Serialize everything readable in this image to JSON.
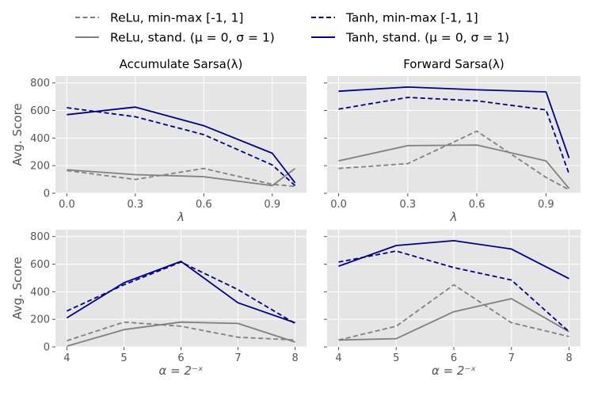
{
  "legend": [
    {
      "label": "ReLu, min-max [-1, 1]",
      "color": "#808080",
      "dash": true
    },
    {
      "label": "Tanh, min-max [-1, 1]",
      "color": "#00008b",
      "dash": true
    },
    {
      "label": "ReLu, stand. (μ = 0, σ = 1)",
      "color": "#808080",
      "dash": false
    },
    {
      "label": "Tanh, stand. (μ = 0, σ = 1)",
      "color": "#00008b",
      "dash": false
    }
  ],
  "colors": {
    "relu": "#808080",
    "tanh": "#00008b",
    "panel_bg": "#e5e5e5",
    "grid": "#ffffff"
  },
  "chart_data": [
    {
      "type": "line",
      "title": "Accumulate Sarsa(λ)",
      "xlabel": "λ",
      "ylabel": "Avg. Score",
      "x_ticks": [
        "0.0",
        "0.3",
        "0.6",
        "0.9"
      ],
      "y_ticks": [
        "0",
        "200",
        "400",
        "600",
        "800"
      ],
      "xlim": [
        -0.05,
        1.05
      ],
      "ylim": [
        0,
        850
      ],
      "x": [
        0.0,
        0.3,
        0.6,
        0.9,
        1.0
      ],
      "series": [
        {
          "name": "ReLu, min-max [-1, 1]",
          "values": [
            165,
            100,
            180,
            65,
            50
          ]
        },
        {
          "name": "ReLu, stand. (μ = 0, σ = 1)",
          "values": [
            170,
            135,
            120,
            55,
            180
          ]
        },
        {
          "name": "Tanh, min-max [-1, 1]",
          "values": [
            620,
            555,
            425,
            205,
            55
          ]
        },
        {
          "name": "Tanh, stand. (μ = 0, σ = 1)",
          "values": [
            570,
            625,
            490,
            290,
            75
          ]
        }
      ]
    },
    {
      "type": "line",
      "title": "Forward Sarsa(λ)",
      "xlabel": "λ",
      "ylabel": "",
      "x_ticks": [
        "0.0",
        "0.3",
        "0.6",
        "0.9"
      ],
      "y_ticks": [
        "0",
        "200",
        "400",
        "600",
        "800"
      ],
      "xlim": [
        -0.05,
        1.05
      ],
      "ylim": [
        0,
        850
      ],
      "x": [
        0.0,
        0.3,
        0.6,
        0.9,
        1.0
      ],
      "series": [
        {
          "name": "ReLu, min-max [-1, 1]",
          "values": [
            180,
            215,
            450,
            115,
            25
          ]
        },
        {
          "name": "ReLu, stand. (μ = 0, σ = 1)",
          "values": [
            235,
            345,
            350,
            235,
            35
          ]
        },
        {
          "name": "Tanh, min-max [-1, 1]",
          "values": [
            610,
            695,
            670,
            605,
            140
          ]
        },
        {
          "name": "Tanh, stand. (μ = 0, σ = 1)",
          "values": [
            740,
            770,
            750,
            735,
            255
          ]
        }
      ]
    },
    {
      "type": "line",
      "title": "",
      "xlabel": "α = 2⁻ˣ",
      "ylabel": "Avg. Score",
      "x_ticks": [
        "4",
        "5",
        "6",
        "7",
        "8"
      ],
      "y_ticks": [
        "0",
        "200",
        "400",
        "600",
        "800"
      ],
      "xlim": [
        3.8,
        8.2
      ],
      "ylim": [
        0,
        850
      ],
      "x": [
        4,
        5,
        6,
        7,
        8
      ],
      "series": [
        {
          "name": "ReLu, min-max [-1, 1]",
          "values": [
            45,
            180,
            150,
            70,
            50
          ]
        },
        {
          "name": "ReLu, stand. (μ = 0, σ = 1)",
          "values": [
            5,
            125,
            180,
            170,
            35
          ]
        },
        {
          "name": "Tanh, min-max [-1, 1]",
          "values": [
            260,
            450,
            615,
            415,
            170
          ]
        },
        {
          "name": "Tanh, stand. (μ = 0, σ = 1)",
          "values": [
            210,
            465,
            620,
            320,
            175
          ]
        }
      ]
    },
    {
      "type": "line",
      "title": "",
      "xlabel": "α = 2⁻ˣ",
      "ylabel": "",
      "x_ticks": [
        "4",
        "5",
        "6",
        "7",
        "8"
      ],
      "y_ticks": [
        "0",
        "200",
        "400",
        "600",
        "800"
      ],
      "xlim": [
        3.8,
        8.2
      ],
      "ylim": [
        0,
        850
      ],
      "x": [
        4,
        5,
        6,
        7,
        8
      ],
      "series": [
        {
          "name": "ReLu, min-max [-1, 1]",
          "values": [
            50,
            150,
            450,
            175,
            75
          ]
        },
        {
          "name": "ReLu, stand. (μ = 0, σ = 1)",
          "values": [
            50,
            60,
            255,
            350,
            110
          ]
        },
        {
          "name": "Tanh, min-max [-1, 1]",
          "values": [
            615,
            695,
            575,
            485,
            110
          ]
        },
        {
          "name": "Tanh, stand. (μ = 0, σ = 1)",
          "values": [
            585,
            735,
            770,
            710,
            495
          ]
        }
      ]
    }
  ]
}
